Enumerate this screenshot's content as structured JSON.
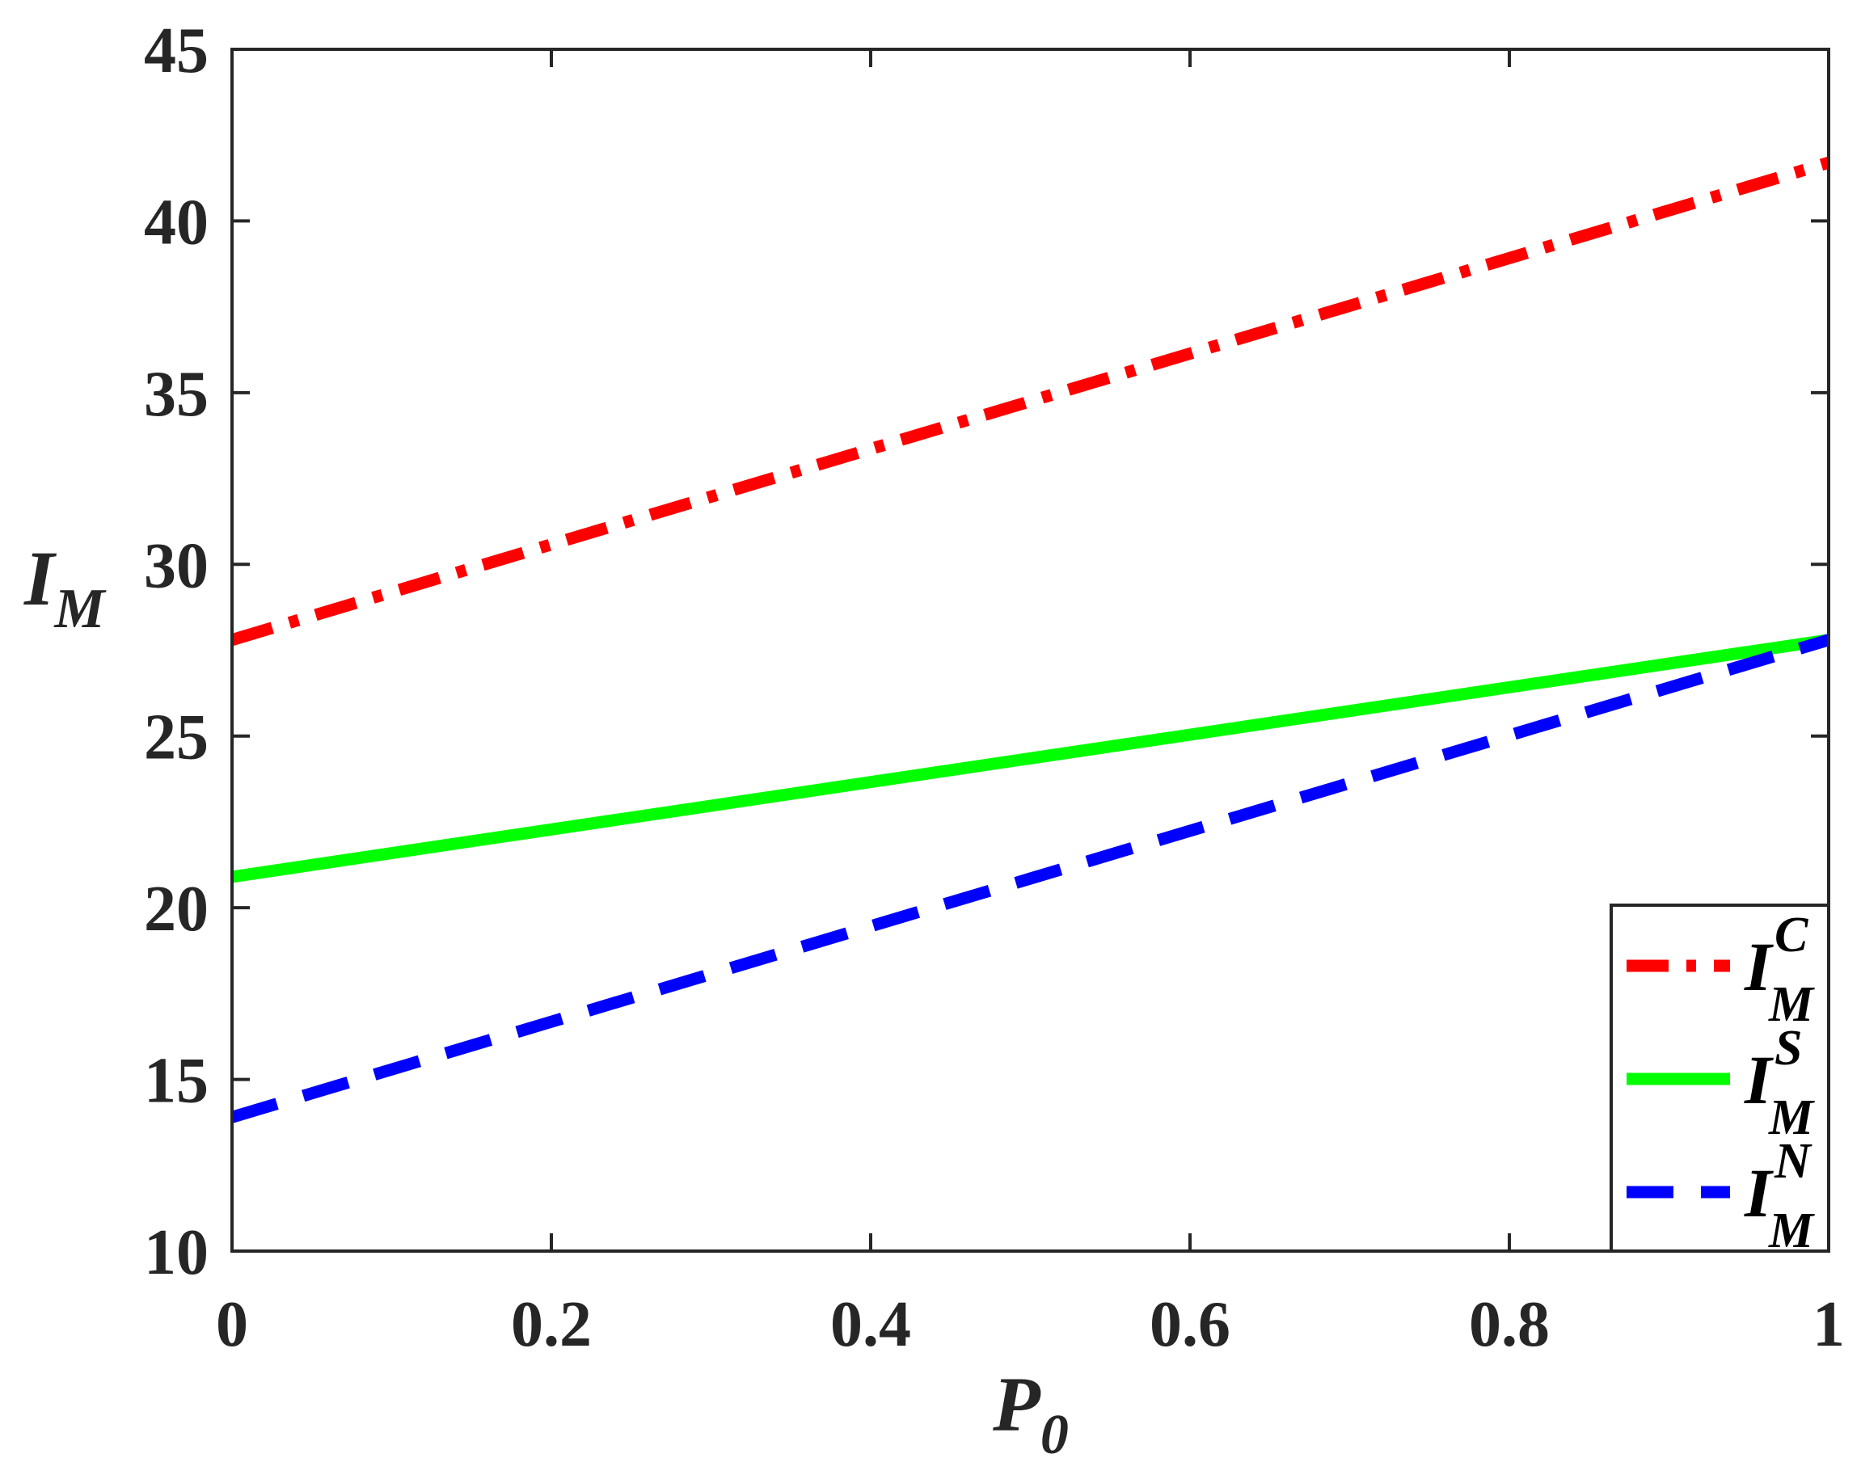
{
  "chart_data": {
    "type": "line",
    "xlabel": {
      "main": "P",
      "sub": "0"
    },
    "ylabel": {
      "main": "I",
      "sub": "M"
    },
    "xlim": [
      0,
      1
    ],
    "ylim": [
      10,
      45
    ],
    "xticks": [
      0,
      0.2,
      0.4,
      0.6,
      0.8,
      1
    ],
    "xtick_labels": [
      "0",
      "0.2",
      "0.4",
      "0.6",
      "0.8",
      "1"
    ],
    "yticks": [
      10,
      15,
      20,
      25,
      30,
      35,
      40,
      45
    ],
    "ytick_labels": [
      "10",
      "15",
      "20",
      "25",
      "30",
      "35",
      "40",
      "45"
    ],
    "grid": false,
    "legend_position": "bottom-right",
    "series": [
      {
        "name": "I_M^C",
        "label_main": "I",
        "label_sub": "M",
        "label_sup": "C",
        "color": "#ff0000",
        "style": "dash-dot",
        "x": [
          0,
          1
        ],
        "y": [
          27.8,
          41.7
        ]
      },
      {
        "name": "I_M^S",
        "label_main": "I",
        "label_sub": "M",
        "label_sup": "S",
        "color": "#00ff00",
        "style": "solid",
        "x": [
          0,
          1
        ],
        "y": [
          20.9,
          27.8
        ]
      },
      {
        "name": "I_M^N",
        "label_main": "I",
        "label_sub": "M",
        "label_sup": "N",
        "color": "#0000ff",
        "style": "dashed",
        "x": [
          0,
          1
        ],
        "y": [
          13.9,
          27.8
        ]
      }
    ]
  }
}
